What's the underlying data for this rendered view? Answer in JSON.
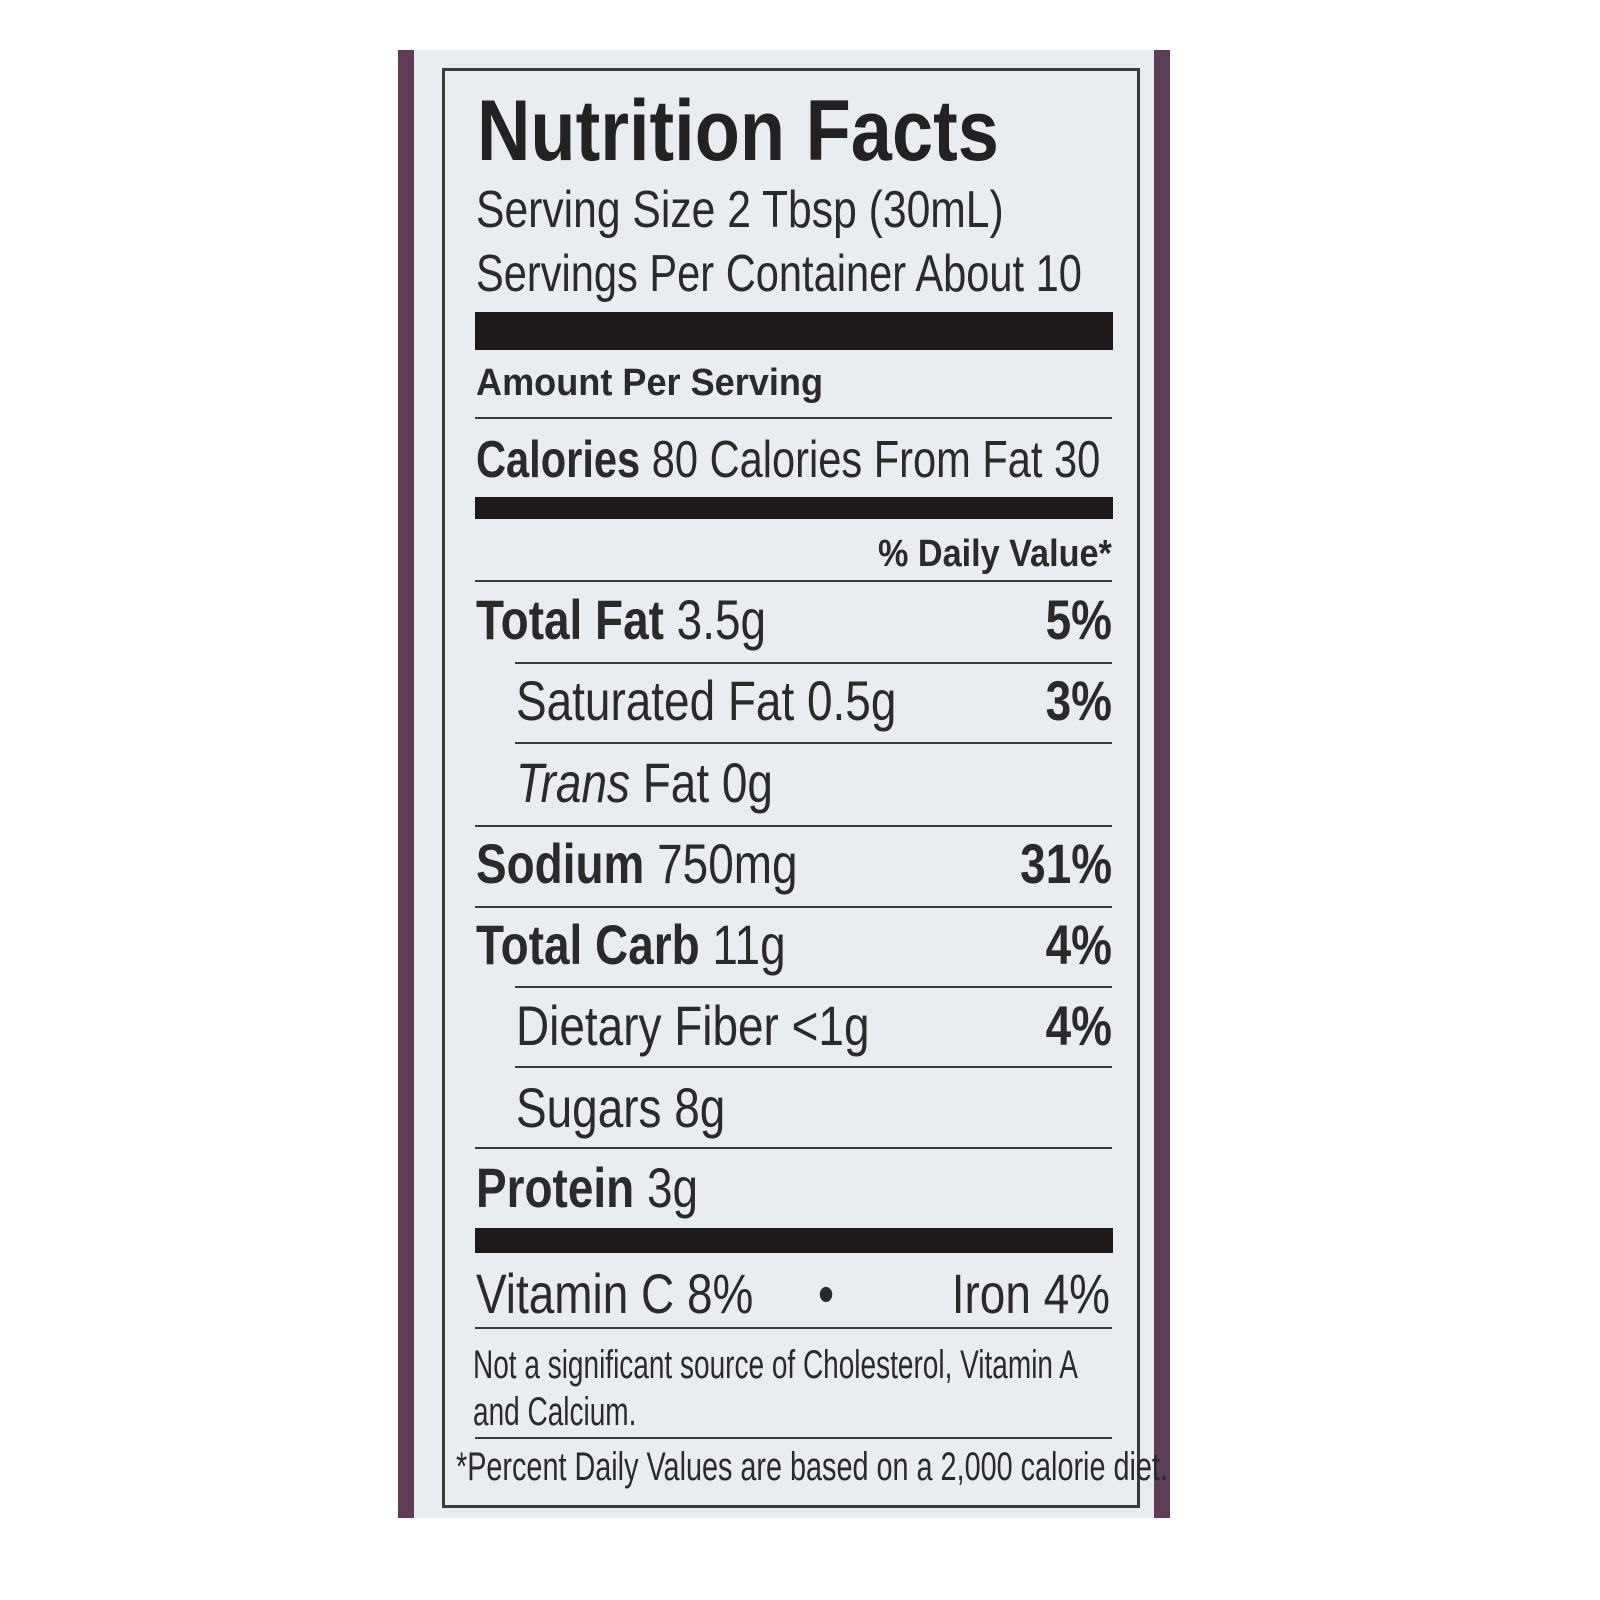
{
  "colors": {
    "label_background": "#e9ecf1",
    "panel_edge": "#5e3d58",
    "ink": "#2a2a2a"
  },
  "title": "Nutrition Facts",
  "serving_size": "Serving Size 2 Tbsp (30mL)",
  "servings_per_container": "Servings Per Container About 10",
  "amount_per_serving": "Amount Per Serving",
  "calories": {
    "label": "Calories",
    "value": "80",
    "from_fat": "Calories From Fat 30"
  },
  "daily_value_header": "% Daily Value*",
  "nutrients": [
    {
      "name": "Total Fat",
      "amount": "3.5g",
      "dv": "5%"
    },
    {
      "name": "Saturated Fat",
      "amount": "0.5g",
      "dv": "3%"
    },
    {
      "name": "Trans",
      "name_suffix": "Fat",
      "amount": "0g",
      "dv": ""
    },
    {
      "name": "Sodium",
      "amount": "750mg",
      "dv": "31%"
    },
    {
      "name": "Total Carb",
      "amount": "11g",
      "dv": "4%"
    },
    {
      "name": "Dietary Fiber",
      "amount": "<1g",
      "dv": "4%"
    },
    {
      "name": "Sugars",
      "amount": "8g",
      "dv": ""
    },
    {
      "name": "Protein",
      "amount": "3g",
      "dv": ""
    }
  ],
  "vitamins": {
    "vitamin_c": "Vitamin C 8%",
    "separator": "•",
    "iron": "Iron 4%"
  },
  "not_significant_line1": "Not a significant source of Cholesterol, Vitamin A",
  "not_significant_line2": "and Calcium.",
  "footnote": "*Percent Daily Values are based on a 2,000 calorie diet."
}
